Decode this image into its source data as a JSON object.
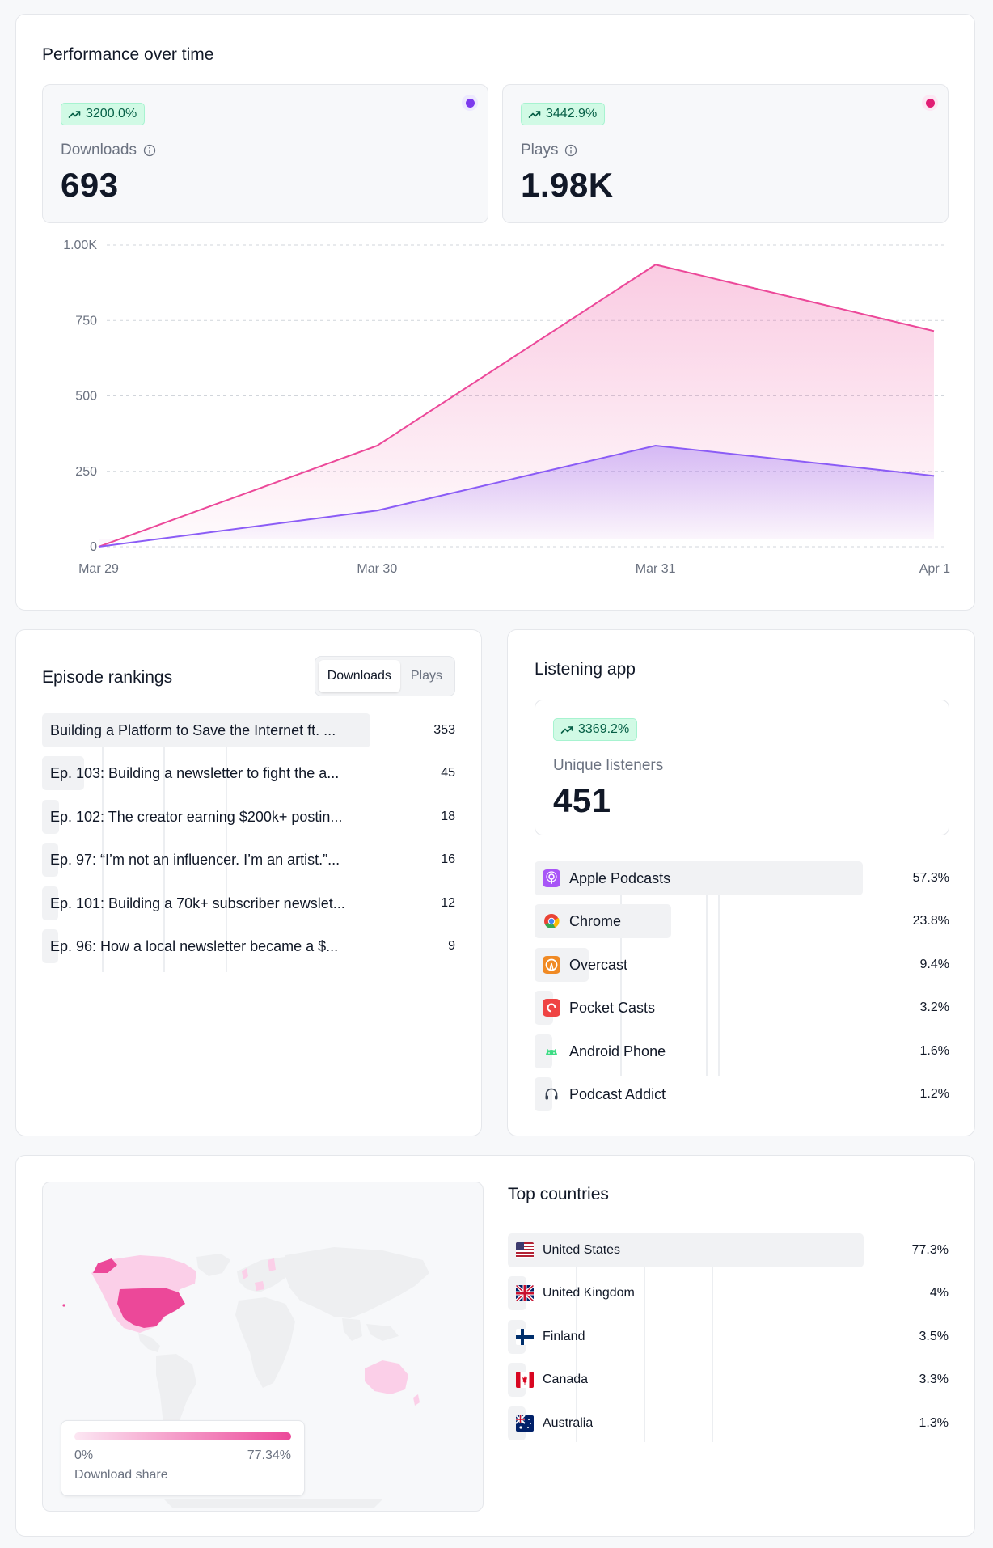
{
  "performance": {
    "title": "Performance over time",
    "downloads": {
      "change": "3200.0%",
      "label": "Downloads",
      "value": "693",
      "color": "#7c3aed"
    },
    "plays": {
      "change": "3442.9%",
      "label": "Plays",
      "value": "1.98K",
      "color": "#e11d74"
    }
  },
  "chart_data": {
    "type": "area",
    "categories": [
      "Mar 29",
      "Mar 30",
      "Mar 31",
      "Apr 1"
    ],
    "series": [
      {
        "name": "Plays",
        "values": [
          0,
          335,
          935,
          715
        ],
        "color": "#ec4899"
      },
      {
        "name": "Downloads",
        "values": [
          0,
          120,
          335,
          235
        ],
        "color": "#8b5cf6"
      }
    ],
    "yticks": [
      0,
      250,
      500,
      750,
      1000
    ],
    "ytick_labels": [
      "0",
      "250",
      "500",
      "750",
      "1.00K"
    ],
    "ylim": [
      0,
      1000
    ],
    "grid": true
  },
  "rankings": {
    "title": "Episode rankings",
    "tabs": [
      "Downloads",
      "Plays"
    ],
    "items": [
      {
        "label": "Building a Platform to Save the Internet ft. ...",
        "value": "353",
        "count": 353
      },
      {
        "label": "Ep. 103: Building a newsletter to fight the a...",
        "value": "45",
        "count": 45
      },
      {
        "label": "Ep. 102: The creator earning $200k+ postin...",
        "value": "18",
        "count": 18
      },
      {
        "label": "Ep. 97: “I’m not an influencer. I’m an artist.”...",
        "value": "16",
        "count": 16
      },
      {
        "label": "Ep. 101: Building a 70k+ subscriber newslet...",
        "value": "12",
        "count": 12
      },
      {
        "label": "Ep. 96: How a local newsletter became a $...",
        "value": "9",
        "count": 9
      }
    ]
  },
  "listening": {
    "title": "Listening app",
    "change": "3369.2%",
    "label": "Unique listeners",
    "value": "451",
    "apps": [
      {
        "label": "Apple Podcasts",
        "value": "57.3%",
        "share": 57.3,
        "icon": "apple-podcasts-icon"
      },
      {
        "label": "Chrome",
        "value": "23.8%",
        "share": 23.8,
        "icon": "chrome-icon"
      },
      {
        "label": "Overcast",
        "value": "9.4%",
        "share": 9.4,
        "icon": "overcast-icon"
      },
      {
        "label": "Pocket Casts",
        "value": "3.2%",
        "share": 3.2,
        "icon": "pocket-casts-icon"
      },
      {
        "label": "Android Phone",
        "value": "1.6%",
        "share": 1.6,
        "icon": "android-icon"
      },
      {
        "label": "Podcast Addict",
        "value": "1.2%",
        "share": 1.2,
        "icon": "headphones-icon"
      }
    ]
  },
  "countries": {
    "title": "Top countries",
    "legend": {
      "min": "0%",
      "max": "77.34%",
      "label": "Download share"
    },
    "items": [
      {
        "label": "United States",
        "value": "77.3%",
        "share": 77.3,
        "flag": "us-flag-icon"
      },
      {
        "label": "United Kingdom",
        "value": "4%",
        "share": 4,
        "flag": "uk-flag-icon"
      },
      {
        "label": "Finland",
        "value": "3.5%",
        "share": 3.5,
        "flag": "finland-flag-icon"
      },
      {
        "label": "Canada",
        "value": "3.3%",
        "share": 3.3,
        "flag": "canada-flag-icon"
      },
      {
        "label": "Australia",
        "value": "1.3%",
        "share": 1.3,
        "flag": "australia-flag-icon"
      }
    ]
  }
}
